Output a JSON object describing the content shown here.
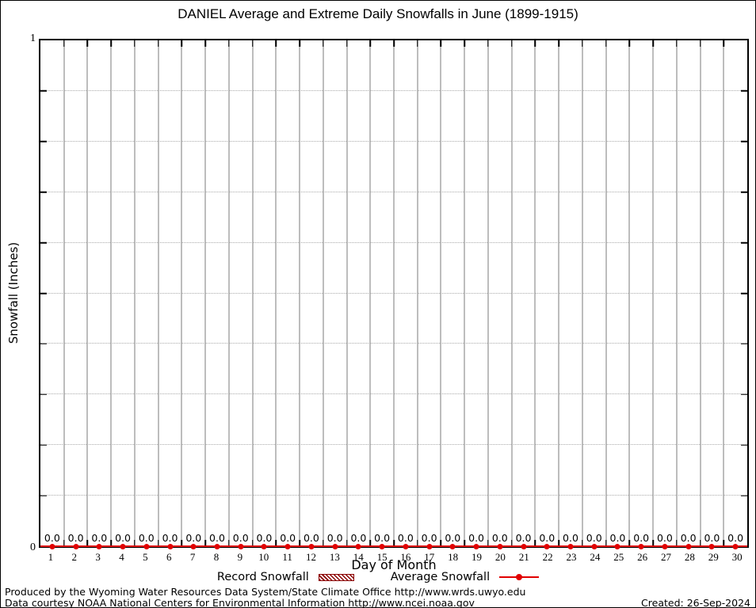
{
  "chart_data": {
    "type": "line",
    "title": "DANIEL Average and Extreme Daily Snowfalls in June (1899-1915)",
    "xlabel": "Day of Month",
    "ylabel": "Snowfall (Inches)",
    "ylim": [
      0,
      1
    ],
    "ytick_labels": {
      "top": "1",
      "bottom": "0"
    },
    "grid": {
      "horizontal": "dotted every 0.1",
      "vertical": "solid gray at day boundaries"
    },
    "legend_position": "bottom",
    "x": [
      1,
      2,
      3,
      4,
      5,
      6,
      7,
      8,
      9,
      10,
      11,
      12,
      13,
      14,
      15,
      16,
      17,
      18,
      19,
      20,
      21,
      22,
      23,
      24,
      25,
      26,
      27,
      28,
      29,
      30
    ],
    "series": [
      {
        "name": "Record Snowfall",
        "type": "bar",
        "style": "hatched",
        "color": "#8b0000",
        "values": [
          0.0,
          0.0,
          0.0,
          0.0,
          0.0,
          0.0,
          0.0,
          0.0,
          0.0,
          0.0,
          0.0,
          0.0,
          0.0,
          0.0,
          0.0,
          0.0,
          0.0,
          0.0,
          0.0,
          0.0,
          0.0,
          0.0,
          0.0,
          0.0,
          0.0,
          0.0,
          0.0,
          0.0,
          0.0,
          0.0
        ]
      },
      {
        "name": "Average Snowfall",
        "type": "line",
        "marker": "filled-circle",
        "color": "#e10000",
        "values": [
          0.0,
          0.0,
          0.0,
          0.0,
          0.0,
          0.0,
          0.0,
          0.0,
          0.0,
          0.0,
          0.0,
          0.0,
          0.0,
          0.0,
          0.0,
          0.0,
          0.0,
          0.0,
          0.0,
          0.0,
          0.0,
          0.0,
          0.0,
          0.0,
          0.0,
          0.0,
          0.0,
          0.0,
          0.0,
          0.0
        ]
      }
    ],
    "point_labels": [
      "0.0",
      "0.0",
      "0.0",
      "0.0",
      "0.0",
      "0.0",
      "0.0",
      "0.0",
      "0.0",
      "0.0",
      "0.0",
      "0.0",
      "0.0",
      "0.0",
      "0.0",
      "0.0",
      "0.0",
      "0.0",
      "0.0",
      "0.0",
      "0.0",
      "0.0",
      "0.0",
      "0.0",
      "0.0",
      "0.0",
      "0.0",
      "0.0",
      "0.0",
      "0.0"
    ]
  },
  "footer": {
    "line1": "Produced by the Wyoming Water Resources Data System/State Climate Office http://www.wrds.uwyo.edu",
    "line2": "Data courtesy NOAA National Centers for Environmental Information http://www.ncei.noaa.gov",
    "created": "Created: 26-Sep-2024"
  }
}
